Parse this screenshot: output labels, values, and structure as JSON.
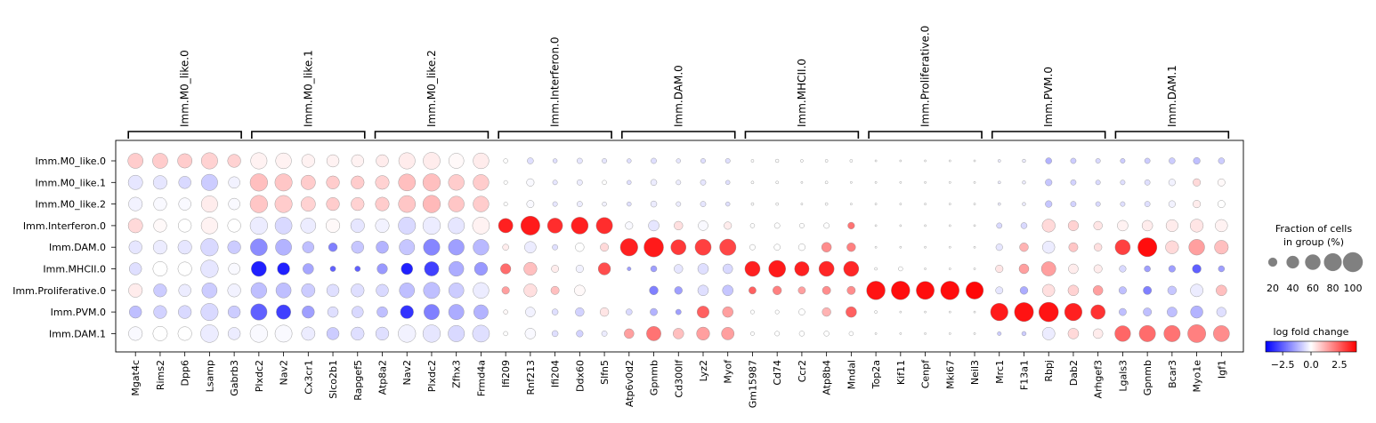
{
  "chart_data": {
    "type": "dotplot",
    "groups": [
      "Imm.M0_like.0",
      "Imm.M0_like.1",
      "Imm.M0_like.2",
      "Imm.Interferon.0",
      "Imm.DAM.0",
      "Imm.MHCII.0",
      "Imm.Proliferative.0",
      "Imm.PVM.0",
      "Imm.DAM.1"
    ],
    "gene_groups": [
      {
        "label": "Imm.M0_like.0",
        "genes": [
          "Mgat4c",
          "Rims2",
          "Dpp6",
          "Lsamp",
          "Gabrb3"
        ]
      },
      {
        "label": "Imm.M0_like.1",
        "genes": [
          "Plxdc2",
          "Nav2",
          "Cx3cr1",
          "Slco2b1",
          "Rapgef5"
        ]
      },
      {
        "label": "Imm.M0_like.2",
        "genes": [
          "Atp8a2",
          "Nav2",
          "Plxdc2",
          "Zfhx3",
          "Frmd4a"
        ]
      },
      {
        "label": "Imm.Interferon.0",
        "genes": [
          "Ifi209",
          "Rnf213",
          "Ifi204",
          "Ddx60",
          "Slfn5"
        ]
      },
      {
        "label": "Imm.DAM.0",
        "genes": [
          "Atp6v0d2",
          "Gpnmb",
          "Cd300lf",
          "Lyz2",
          "Myof"
        ]
      },
      {
        "label": "Imm.MHCII.0",
        "genes": [
          "Gm15987",
          "Cd74",
          "Ccr2",
          "Atp8b4",
          "Mndal"
        ]
      },
      {
        "label": "Imm.Proliferative.0",
        "genes": [
          "Top2a",
          "Kif11",
          "Cenpf",
          "Mki67",
          "Neil3"
        ]
      },
      {
        "label": "Imm.PVM.0",
        "genes": [
          "Mrc1",
          "F13a1",
          "Rbpj",
          "Dab2",
          "Arhgef3"
        ]
      },
      {
        "label": "Imm.DAM.1",
        "genes": [
          "Lgals3",
          "Gpnmb",
          "Bcar3",
          "Myo1e",
          "Igf1"
        ]
      }
    ],
    "fraction": [
      [
        60,
        60,
        55,
        70,
        45,
        70,
        65,
        45,
        40,
        40,
        40,
        70,
        75,
        60,
        65,
        5,
        10,
        5,
        8,
        6,
        5,
        8,
        5,
        6,
        6,
        2,
        3,
        2,
        2,
        2,
        1,
        1,
        1,
        1,
        1,
        2,
        3,
        10,
        8,
        6,
        6,
        8,
        10,
        12,
        10
      ],
      [
        55,
        50,
        40,
        70,
        35,
        80,
        78,
        55,
        45,
        45,
        50,
        75,
        80,
        65,
        65,
        4,
        15,
        6,
        8,
        5,
        5,
        10,
        6,
        8,
        5,
        2,
        2,
        1,
        2,
        1,
        1,
        1,
        1,
        1,
        1,
        2,
        3,
        12,
        8,
        6,
        6,
        8,
        12,
        15,
        14
      ],
      [
        50,
        45,
        40,
        70,
        35,
        80,
        78,
        55,
        45,
        45,
        50,
        75,
        80,
        65,
        65,
        4,
        14,
        6,
        8,
        5,
        5,
        10,
        6,
        8,
        5,
        2,
        2,
        1,
        2,
        1,
        1,
        1,
        1,
        1,
        1,
        2,
        3,
        12,
        8,
        6,
        6,
        8,
        12,
        15,
        14
      ],
      [
        55,
        45,
        45,
        72,
        45,
        80,
        75,
        60,
        50,
        50,
        50,
        78,
        80,
        70,
        75,
        55,
        95,
        60,
        75,
        70,
        15,
        30,
        20,
        25,
        15,
        5,
        8,
        6,
        8,
        12,
        1,
        1,
        1,
        1,
        1,
        8,
        10,
        45,
        28,
        20,
        30,
        30,
        38,
        45,
        40
      ],
      [
        45,
        50,
        50,
        80,
        45,
        75,
        68,
        35,
        20,
        40,
        40,
        62,
        70,
        65,
        65,
        10,
        35,
        8,
        20,
        18,
        80,
        100,
        60,
        68,
        70,
        8,
        10,
        12,
        25,
        20,
        1,
        1,
        1,
        1,
        1,
        12,
        20,
        40,
        22,
        16,
        60,
        95,
        45,
        65,
        50
      ],
      [
        40,
        55,
        50,
        80,
        35,
        60,
        40,
        30,
        8,
        8,
        28,
        35,
        55,
        58,
        45,
        28,
        45,
        14,
        15,
        40,
        4,
        10,
        20,
        30,
        25,
        60,
        75,
        55,
        60,
        60,
        2,
        5,
        1,
        1,
        1,
        15,
        25,
        55,
        25,
        18,
        12,
        10,
        12,
        20,
        10
      ],
      [
        50,
        45,
        40,
        60,
        45,
        65,
        60,
        48,
        40,
        45,
        40,
        60,
        70,
        60,
        65,
        15,
        45,
        18,
        30,
        0,
        0,
        20,
        16,
        30,
        30,
        14,
        20,
        14,
        18,
        18,
        90,
        90,
        85,
        90,
        80,
        14,
        16,
        40,
        30,
        25,
        15,
        18,
        20,
        42,
        30
      ],
      [
        40,
        45,
        45,
        78,
        40,
        70,
        55,
        40,
        30,
        35,
        30,
        45,
        62,
        62,
        55,
        5,
        25,
        10,
        20,
        20,
        10,
        14,
        8,
        38,
        30,
        4,
        4,
        10,
        20,
        30,
        2,
        1,
        1,
        1,
        1,
        80,
        95,
        100,
        80,
        55,
        14,
        18,
        26,
        40,
        24
      ],
      [
        50,
        55,
        50,
        82,
        40,
        80,
        76,
        48,
        40,
        45,
        45,
        80,
        80,
        70,
        75,
        5,
        30,
        10,
        12,
        8,
        25,
        55,
        30,
        45,
        42,
        4,
        6,
        7,
        7,
        5,
        1,
        1,
        1,
        1,
        1,
        4,
        5,
        42,
        30,
        25,
        65,
        70,
        70,
        85,
        68
      ]
    ],
    "logfc": [
      [
        0.8,
        0.8,
        0.8,
        0.7,
        0.7,
        0.2,
        0.2,
        0.2,
        0.2,
        0.2,
        0.3,
        0.3,
        0.3,
        0.1,
        0.3,
        0.0,
        -0.5,
        -0.5,
        -0.4,
        -0.4,
        -0.5,
        -0.5,
        -0.4,
        -0.5,
        -0.5,
        0,
        0,
        0,
        0,
        0,
        0,
        0,
        0,
        0,
        0,
        -0.3,
        -0.3,
        -1.2,
        -0.8,
        -0.6,
        -0.8,
        -0.8,
        -0.8,
        -1.0,
        -0.8
      ],
      [
        -0.4,
        -0.4,
        -0.6,
        -0.8,
        -0.2,
        1.0,
        0.9,
        0.8,
        0.8,
        0.8,
        0.7,
        1.0,
        1.0,
        0.8,
        0.8,
        0.0,
        -0.1,
        -0.4,
        -0.3,
        0.0,
        -0.5,
        -0.3,
        -0.3,
        -0.4,
        -0.5,
        0,
        0,
        0,
        0,
        0,
        0,
        0,
        0,
        0,
        0,
        -0.3,
        -0.3,
        -0.9,
        -0.7,
        -0.6,
        -0.5,
        -0.5,
        -0.2,
        0.6,
        0.1
      ],
      [
        -0.2,
        -0.1,
        -0.1,
        0.3,
        -0.1,
        0.9,
        0.8,
        0.7,
        0.8,
        0.7,
        0.8,
        0.9,
        1.1,
        0.9,
        0.8,
        0.0,
        -0.1,
        -0.4,
        -0.3,
        -0.2,
        -0.5,
        -0.3,
        -0.3,
        -0.4,
        -0.5,
        0,
        0,
        0,
        0,
        0,
        0,
        0,
        0,
        0,
        0,
        -0.3,
        -0.3,
        -0.9,
        -0.7,
        -0.6,
        -0.5,
        -0.5,
        -0.2,
        0.3,
        0.0
      ],
      [
        0.6,
        0.1,
        0.0,
        0.2,
        0.0,
        -0.3,
        -0.6,
        -0.3,
        0.1,
        -0.4,
        -0.2,
        -0.6,
        -0.3,
        -0.4,
        0.2,
        3.5,
        3.6,
        3.3,
        3.5,
        3.3,
        -0.1,
        -0.4,
        0.5,
        -0.1,
        0.3,
        0,
        0,
        0,
        0,
        2.2,
        0,
        0,
        0,
        0,
        0,
        -0.6,
        -0.6,
        0.6,
        0.7,
        0.4,
        0.2,
        0.3,
        0.3,
        0.4,
        0.2
      ],
      [
        -0.4,
        -0.3,
        -0.4,
        -0.6,
        -0.8,
        -1.8,
        -1.2,
        -1.0,
        -2.0,
        -0.9,
        -1.2,
        -0.9,
        -1.9,
        -1.5,
        -1.1,
        0.3,
        -0.3,
        -0.5,
        0.0,
        0.6,
        3.5,
        3.6,
        3.1,
        3.0,
        2.9,
        0,
        0,
        0,
        1.8,
        2.0,
        0,
        0,
        0,
        0,
        0,
        -0.4,
        1.2,
        -0.3,
        0.9,
        0.5,
        3.0,
        3.8,
        0.6,
        1.5,
        1.0
      ],
      [
        -0.5,
        0.0,
        0.0,
        -0.4,
        -0.1,
        -3.5,
        -3.5,
        -1.4,
        -2.5,
        -2.5,
        -1.6,
        -3.5,
        -3.0,
        -1.3,
        -1.6,
        2.3,
        1.0,
        0.3,
        -0.2,
        2.8,
        -1.5,
        -1.5,
        -0.4,
        -0.5,
        -0.6,
        3.5,
        3.6,
        3.5,
        3.4,
        3.4,
        0,
        0,
        0,
        0,
        0,
        0.4,
        1.5,
        1.5,
        0.3,
        0.3,
        -0.6,
        -1.5,
        -1.5,
        -2.5,
        -1.5
      ],
      [
        0.3,
        -0.8,
        -0.3,
        -0.8,
        -0.2,
        -1.0,
        -1.0,
        -0.8,
        -0.5,
        -0.5,
        -0.6,
        -1.0,
        -1.0,
        -0.8,
        -0.3,
        1.5,
        0.5,
        1.0,
        0.1,
        0.0,
        0,
        -2.0,
        -1.5,
        -0.5,
        -0.9,
        2.5,
        2.0,
        1.5,
        1.8,
        1.8,
        3.7,
        3.8,
        3.8,
        3.8,
        3.9,
        -0.4,
        -1.3,
        0.5,
        0.7,
        1.5,
        -1.0,
        -2.0,
        -0.9,
        -0.3,
        1.0
      ],
      [
        -1.0,
        -0.7,
        -0.6,
        -0.6,
        -0.8,
        -2.5,
        -3.0,
        -1.5,
        -0.5,
        -0.6,
        -1.0,
        -3.2,
        -2.0,
        -1.3,
        -1.2,
        0.1,
        -0.2,
        -0.5,
        -0.7,
        0.4,
        -0.6,
        -1.2,
        -1.5,
        2.5,
        1.5,
        0,
        0,
        0,
        1.2,
        2.5,
        0,
        0,
        0,
        0,
        0,
        3.6,
        3.7,
        3.7,
        3.5,
        3.2,
        -1.0,
        -1.0,
        -1.0,
        -1.2,
        -0.5
      ],
      [
        -0.1,
        0.0,
        0.0,
        -0.3,
        -0.3,
        -0.1,
        -0.1,
        -0.3,
        -0.8,
        -0.5,
        -0.5,
        -0.2,
        -0.4,
        -0.6,
        -0.5,
        0.0,
        -0.1,
        -0.5,
        -0.7,
        -0.3,
        1.5,
        2.2,
        1.0,
        1.5,
        1.5,
        0,
        0,
        0,
        0,
        0,
        0,
        0,
        0,
        0,
        0,
        -0.8,
        -0.8,
        -0.3,
        0.6,
        0.3,
        2.4,
        2.3,
        2.2,
        2.0,
        1.8
      ]
    ],
    "size_legend": {
      "title_line1": "Fraction of cells",
      "title_line2": "in group (%)",
      "values": [
        20,
        40,
        60,
        80,
        100
      ],
      "labels": [
        "20",
        "40",
        "60",
        "80",
        "100"
      ]
    },
    "color_legend": {
      "title": "log fold change",
      "range": [
        -4,
        4
      ],
      "ticks": [
        -2.5,
        0.0,
        2.5
      ],
      "tick_labels": [
        "−2.5",
        "0.0",
        "2.5"
      ],
      "colors": [
        "#0000ff",
        "#ffffff",
        "#ff0000"
      ]
    }
  }
}
